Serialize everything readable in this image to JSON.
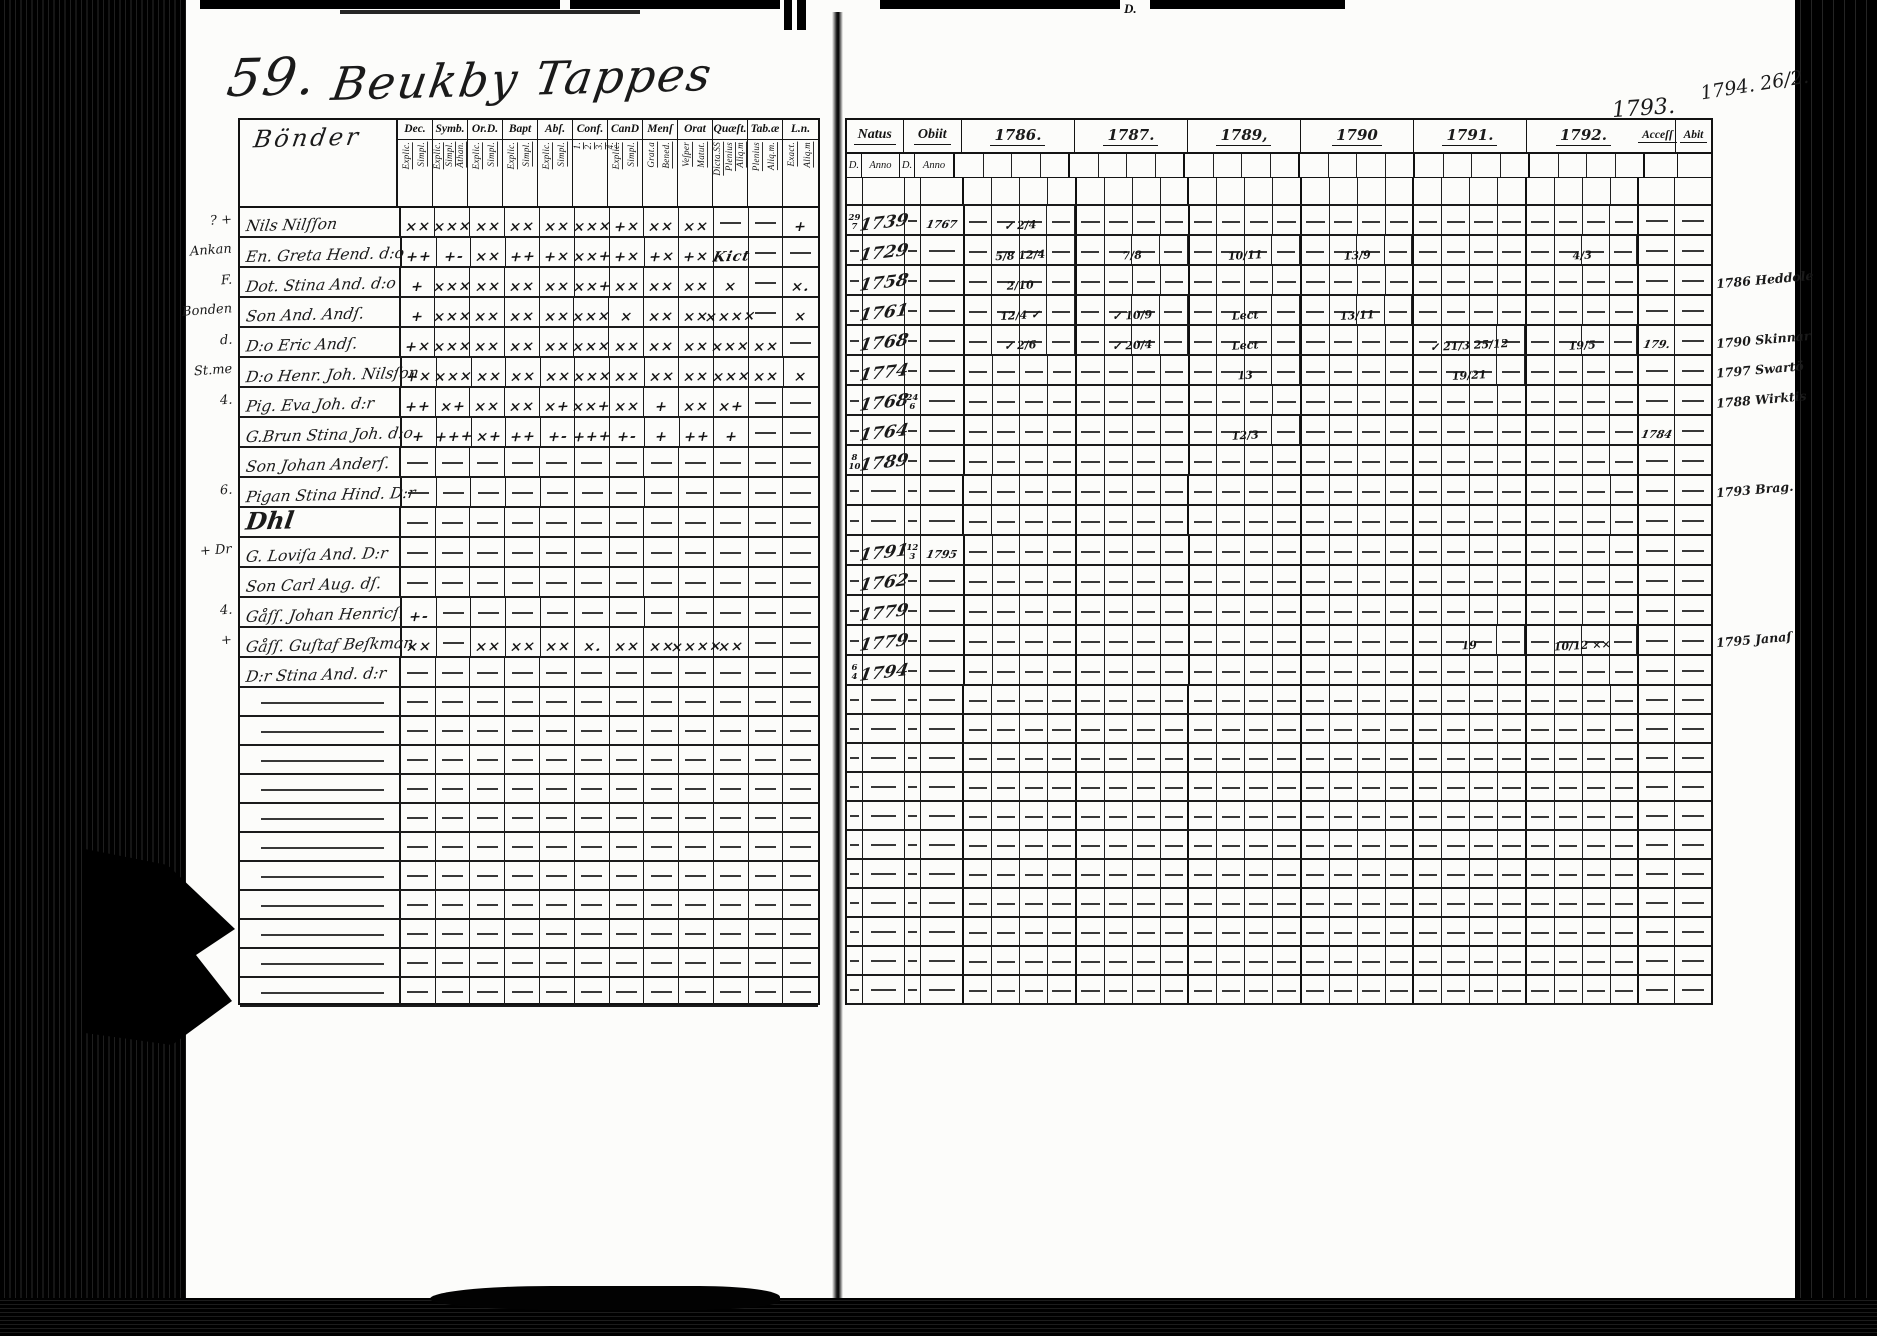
{
  "page_annotations": {
    "top_right_line1": "1794. 26/2.",
    "top_right_line2": "1793.",
    "top_letter": "D."
  },
  "left_page": {
    "page_number": "59.",
    "title": "Beukby Tappes",
    "section_label": "Bönder",
    "header_groups": [
      {
        "label": "Dec.",
        "subs": [
          "Explic.",
          "Simpl."
        ]
      },
      {
        "label": "Symb.",
        "subs": [
          "Explic.",
          "Simpl.",
          "Athan."
        ]
      },
      {
        "label": "Or.D.",
        "subs": [
          "Explic.",
          "Simpl."
        ]
      },
      {
        "label": "Bapt",
        "subs": [
          "Explic.",
          "Simpl."
        ]
      },
      {
        "label": "Abſ.",
        "subs": [
          "Explic.",
          "Simpl."
        ]
      },
      {
        "label": "Conf.",
        "subs": [
          "1.",
          "2.",
          "3.",
          "4."
        ]
      },
      {
        "label": "CanD",
        "subs": [
          "Explic.",
          "Simpl."
        ]
      },
      {
        "label": "Menſ",
        "subs": [
          "Grat.a",
          "Bened."
        ]
      },
      {
        "label": "Orat",
        "subs": [
          "Veſper",
          "Matut."
        ]
      },
      {
        "label": "Quæſt.",
        "subs": [
          "Dicta.SS",
          "Plenius",
          "Aliq.m"
        ]
      },
      {
        "label": "Tab.æ",
        "subs": [
          "Plenius",
          "Aliq.m."
        ]
      },
      {
        "label": "L.n.",
        "subs": [
          "Exact.",
          "Aliq.m"
        ]
      }
    ],
    "rows": [
      {
        "margin": "? +",
        "name": "Nils Nilſſon",
        "marks": [
          "××",
          "×××",
          "××",
          "××",
          "××",
          "×××",
          "+×",
          "××",
          "××",
          "",
          "",
          "+"
        ]
      },
      {
        "margin": "Ankan",
        "name": "En. Greta Hend. d:o",
        "marks": [
          "++",
          "+-",
          "××",
          "++",
          "+×",
          "××+",
          "+×",
          "+×",
          "+×",
          "Kict",
          "",
          ""
        ]
      },
      {
        "margin": "F.",
        "name": "Dot. Stina And. d:o",
        "marks": [
          "+",
          "×××",
          "××",
          "××",
          "××",
          "××+",
          "××",
          "××",
          "××",
          "×",
          "",
          "×."
        ]
      },
      {
        "margin": "Bonden",
        "name": "Son And. Andſ.",
        "marks": [
          "+",
          "×××",
          "××",
          "××",
          "××",
          "×××",
          "×",
          "××",
          "××",
          "××××",
          "",
          "×"
        ]
      },
      {
        "margin": "d.",
        "name": "D:o Eric Andſ.",
        "marks": [
          "+×",
          "×××",
          "××",
          "××",
          "××",
          "×××",
          "××",
          "××",
          "××",
          "×××",
          "××",
          ""
        ]
      },
      {
        "margin": "St.me",
        "name": "D:o Henr. Joh. Nilsſon",
        "marks": [
          "+×",
          "×××",
          "××",
          "××",
          "××",
          "×××",
          "××",
          "××",
          "××",
          "×××",
          "××",
          "×"
        ]
      },
      {
        "margin": "4.",
        "name": "Pig. Eva Joh. d:r",
        "marks": [
          "++",
          "×+",
          "××",
          "××",
          "×+",
          "××+",
          "××",
          "+",
          "××",
          "×+",
          "",
          ""
        ]
      },
      {
        "margin": "",
        "name": "G.Brun Stina Joh. d:o",
        "marks": [
          "+",
          "+++",
          "×+",
          "++",
          "+-",
          "+++",
          "+-",
          "+",
          "++",
          "+",
          "",
          ""
        ]
      },
      {
        "margin": "",
        "name": "Son Johan Anderſ.",
        "marks": []
      },
      {
        "margin": "6.",
        "name": "Pigan Stina Hind. D:r",
        "marks": []
      },
      {
        "margin": "",
        "name": "Dhl",
        "marks": [],
        "scribble": true
      },
      {
        "margin": "+ Dr",
        "name": "G. Loviſa And. D:r",
        "marks": []
      },
      {
        "margin": "",
        "name": "Son Carl Aug. dſ.",
        "marks": []
      },
      {
        "margin": "4.",
        "name": "Gåſſ. Johan Henricſ.",
        "marks": [
          "+-",
          "",
          "",
          "",
          "",
          "",
          "",
          "",
          "",
          "",
          "",
          ""
        ]
      },
      {
        "margin": "+",
        "name": "Gåſſ. Guſtaf Beſkman",
        "marks": [
          "××",
          "",
          "××",
          "××",
          "××",
          "×.",
          "××",
          "××",
          "××××",
          "××",
          "",
          ""
        ]
      },
      {
        "margin": "",
        "name": "D:r Stina And. d:r",
        "marks": []
      }
    ],
    "empty_row_count": 11
  },
  "right_page": {
    "natus_label": "Natus",
    "obiit_label": "Obiit",
    "d_label": "D.",
    "anno_label": "Anno",
    "accessit_label": "Acceſſ",
    "abit_label": "Abit",
    "year_columns": [
      "1786.",
      "1787.",
      "1789,",
      "1790",
      "1791.",
      "1792."
    ],
    "rows": [
      {
        "natus_d": "29/7",
        "natus": "1739",
        "obiit_d": "",
        "obiit": "1767",
        "cells": {
          "1786": "✓ 2/4"
        },
        "accessit": "",
        "abit": "",
        "margin": ""
      },
      {
        "natus_d": "",
        "natus": "1729",
        "obiit_d": "",
        "obiit": "",
        "cells": {
          "1786": "5/8 12/4",
          "1787": "7/8",
          "1789": "10/11",
          "1790": "13/9",
          "1792": "4/3"
        },
        "accessit": "",
        "abit": "",
        "margin": ""
      },
      {
        "natus_d": "",
        "natus": "1758",
        "obiit_d": "",
        "obiit": "",
        "cells": {
          "1786": "2/10"
        },
        "accessit": "",
        "abit": "",
        "margin": "1786 Heddole"
      },
      {
        "natus_d": "",
        "natus": "1761",
        "obiit_d": "",
        "obiit": "",
        "cells": {
          "1786": "12/4 ✓",
          "1787": "✓ 10/9",
          "1789": "Lect",
          "1790": "13/11"
        },
        "accessit": "",
        "abit": "",
        "margin": ""
      },
      {
        "natus_d": "",
        "natus": "1768",
        "obiit_d": "",
        "obiit": "",
        "cells": {
          "1786": "✓ 2/6",
          "1787": "✓ 20/4",
          "1789": "Lect",
          "1791": "✓ 21/3 25/12",
          "1792": "19/5"
        },
        "accessit": "179.",
        "abit": "",
        "margin": "1790 Skinnar"
      },
      {
        "natus_d": "",
        "natus": "1774",
        "obiit_d": "",
        "obiit": "",
        "cells": {
          "1789": "13",
          "1791": "19/21"
        },
        "accessit": "",
        "abit": "",
        "margin": "1797 Swartö"
      },
      {
        "natus_d": "",
        "natus": "1768",
        "obiit_d": "24/6",
        "obiit": "",
        "cells": {},
        "accessit": "",
        "abit": "",
        "margin": "1788 Wirktis"
      },
      {
        "natus_d": "",
        "natus": "1764",
        "obiit_d": "",
        "obiit": "",
        "cells": {
          "1789": "12/3"
        },
        "accessit": "1784",
        "abit": "",
        "margin": ""
      },
      {
        "natus_d": "8/10",
        "natus": "1789",
        "obiit_d": "",
        "obiit": "",
        "cells": {},
        "accessit": "",
        "abit": "",
        "margin": ""
      },
      {
        "natus_d": "",
        "natus": "",
        "obiit_d": "",
        "obiit": "",
        "cells": {},
        "accessit": "",
        "abit": "",
        "margin": "1793 Brag."
      },
      {
        "natus_d": "",
        "natus": "",
        "obiit_d": "",
        "obiit": "",
        "cells": {},
        "accessit": "",
        "abit": "",
        "margin": ""
      },
      {
        "natus_d": "",
        "natus": "1791",
        "obiit_d": "12/3",
        "obiit": "1795",
        "cells": {},
        "accessit": "",
        "abit": "",
        "margin": ""
      },
      {
        "natus_d": "",
        "natus": "1762",
        "obiit_d": "",
        "obiit": "",
        "cells": {},
        "accessit": "",
        "abit": "",
        "margin": ""
      },
      {
        "natus_d": "",
        "natus": "1779",
        "obiit_d": "",
        "obiit": "",
        "cells": {},
        "accessit": "",
        "abit": "",
        "margin": ""
      },
      {
        "natus_d": "",
        "natus": "1779",
        "obiit_d": "",
        "obiit": "",
        "cells": {
          "1791": "19",
          "1792": "10/12 ××"
        },
        "accessit": "",
        "abit": "",
        "margin": "1795 Janaſ"
      },
      {
        "natus_d": "6/4",
        "natus": "1794",
        "obiit_d": "",
        "obiit": "",
        "cells": {},
        "accessit": "",
        "abit": "",
        "margin": ""
      }
    ],
    "empty_row_count": 11
  }
}
